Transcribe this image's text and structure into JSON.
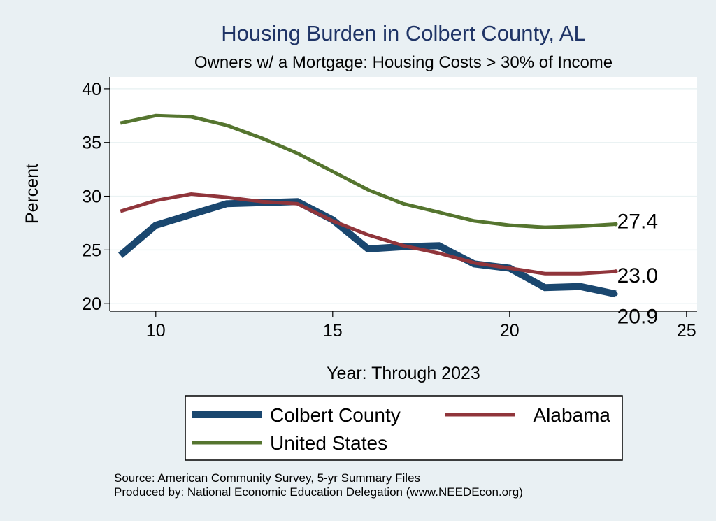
{
  "chart_data": {
    "type": "line",
    "title": "Housing Burden in Colbert County, AL",
    "subtitle": "Owners w/ a Mortgage: Housing Costs > 30% of Income",
    "xlabel": "Year: Through 2023",
    "ylabel": "Percent",
    "xlim": [
      8.7,
      25.3
    ],
    "ylim": [
      19.3,
      41.1
    ],
    "xticks": [
      10,
      15,
      20,
      25
    ],
    "yticks": [
      20,
      25,
      30,
      35,
      40
    ],
    "x": [
      9,
      10,
      11,
      12,
      13,
      14,
      15,
      16,
      17,
      18,
      19,
      20,
      21,
      22,
      23
    ],
    "series": [
      {
        "name": "Colbert County",
        "color": "#1a476f",
        "values": [
          24.5,
          27.3,
          28.3,
          29.3,
          29.4,
          29.5,
          27.8,
          25.1,
          25.3,
          25.4,
          23.7,
          23.3,
          21.5,
          21.6,
          20.9
        ],
        "end_label": "20.9"
      },
      {
        "name": "Alabama",
        "color": "#90353b",
        "values": [
          28.6,
          29.6,
          30.2,
          29.9,
          29.5,
          29.3,
          27.7,
          26.4,
          25.4,
          24.7,
          23.8,
          23.3,
          22.8,
          22.8,
          23.0
        ],
        "end_label": "23.0"
      },
      {
        "name": "United States",
        "color": "#55752f",
        "values": [
          36.8,
          37.5,
          37.4,
          36.6,
          35.4,
          34.0,
          32.3,
          30.6,
          29.3,
          28.5,
          27.7,
          27.3,
          27.1,
          27.2,
          27.4
        ],
        "end_label": "27.4"
      }
    ],
    "legend_position": "bottom",
    "grid": true
  },
  "footnotes": {
    "source": "Source: American Community Survey, 5-yr Summary Files",
    "produced": "Produced by: National Economic Education Delegation (www.NEEDEcon.org)"
  }
}
